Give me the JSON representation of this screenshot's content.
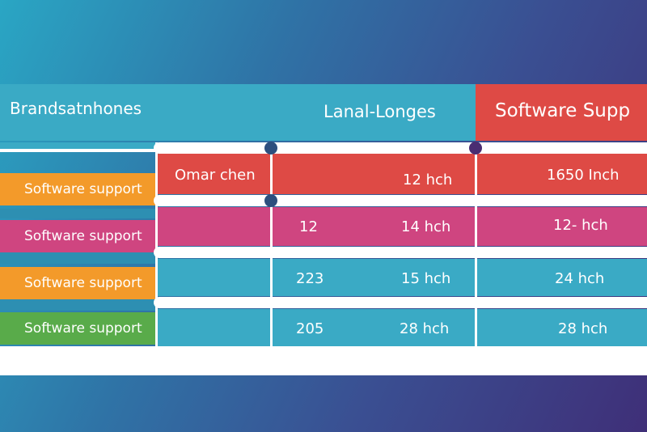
{
  "colors": {
    "teal": "#3aaac5",
    "red": "#de4a45",
    "magenta": "#cf4580",
    "orange": "#f39a2a",
    "green": "#59ab4a",
    "navy_dot": "#2d4f7e",
    "purple_dot": "#4a2d72"
  },
  "header": {
    "left": "Brandsatnhones",
    "middle": "Lanal-Longes",
    "right": "Software Supp"
  },
  "rows": [
    {
      "tab": "Software support",
      "c1": "Omar chen",
      "c2": "12 hch",
      "c3": "1650 Inch"
    },
    {
      "tab": "Software support",
      "c1": "12",
      "c2": "14 hch",
      "c3": "12- hch"
    },
    {
      "tab": "Software support",
      "c1": "223",
      "c2": "15 hch",
      "c3": "24 hch"
    },
    {
      "tab": "Software support",
      "c1": "205",
      "c2": "28 hch",
      "c3": "28 hch"
    }
  ]
}
